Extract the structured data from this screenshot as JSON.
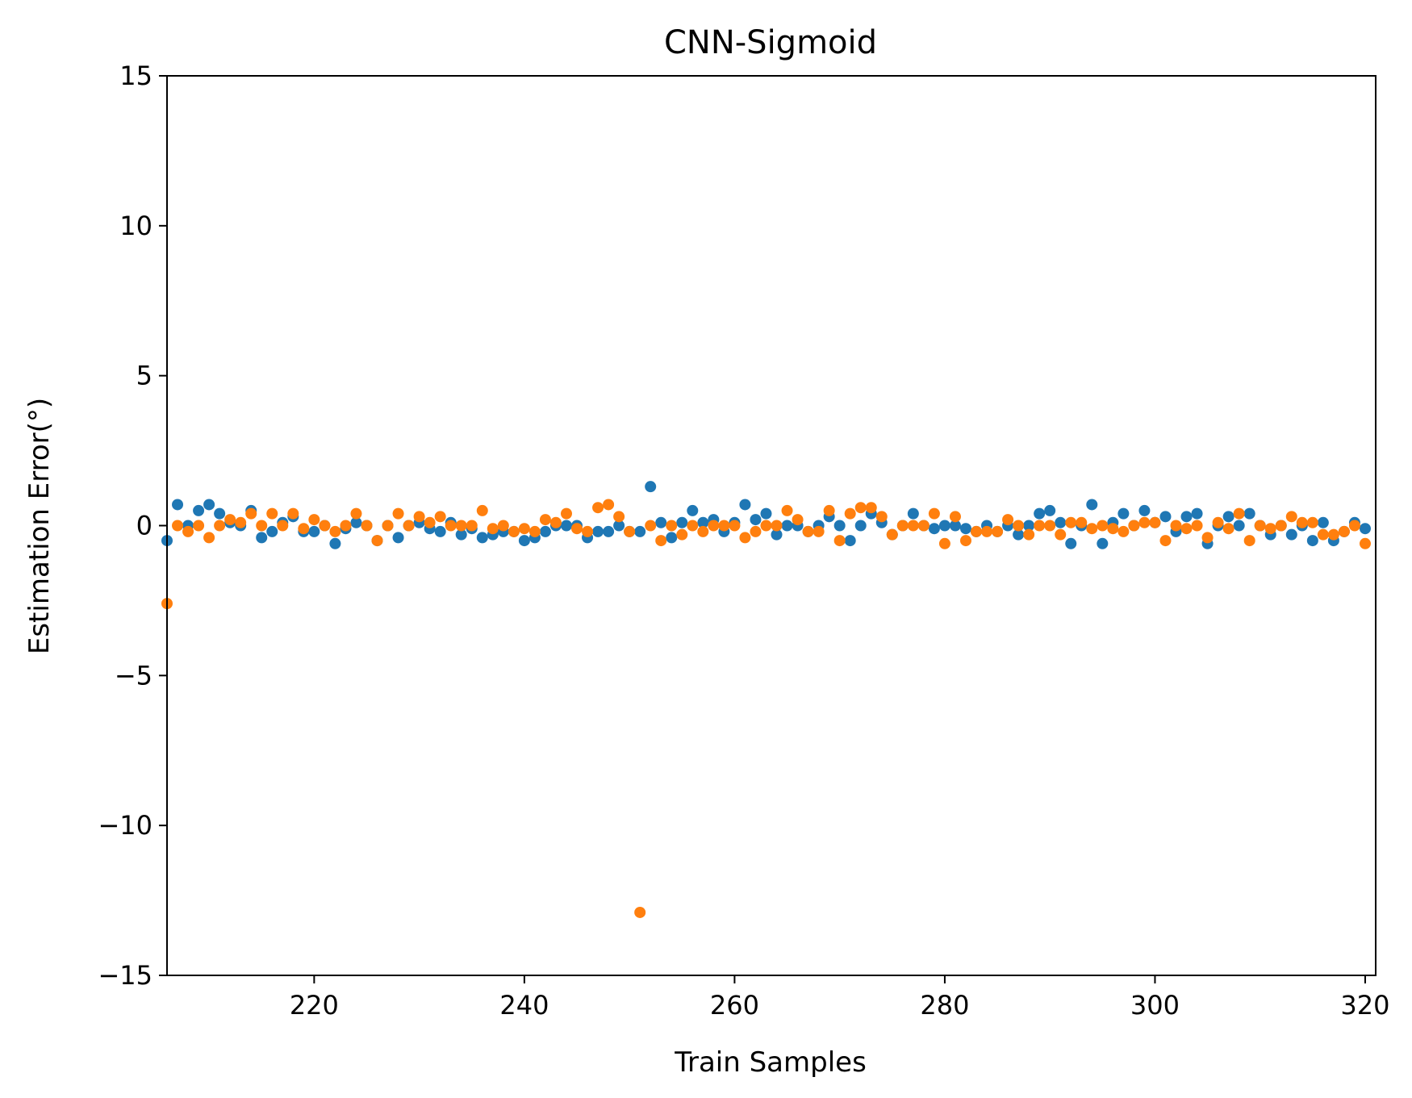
{
  "chart_data": {
    "type": "scatter",
    "title": "CNN-Sigmoid",
    "xlabel": "Train Samples",
    "ylabel": "Estimation Error(°)",
    "xlim": [
      206,
      321
    ],
    "ylim": [
      -15,
      15
    ],
    "xticks": [
      220,
      240,
      260,
      280,
      300,
      320
    ],
    "yticks": [
      15,
      10,
      5,
      0,
      -5,
      -10,
      -15
    ],
    "ytick_labels": [
      "15",
      "10",
      "5",
      "0",
      "−5",
      "−10",
      "−15"
    ],
    "grid": false,
    "legend": "none",
    "x": [
      206,
      207,
      208,
      209,
      210,
      211,
      212,
      213,
      214,
      215,
      216,
      217,
      218,
      219,
      220,
      221,
      222,
      223,
      224,
      225,
      226,
      227,
      228,
      229,
      230,
      231,
      232,
      233,
      234,
      235,
      236,
      237,
      238,
      239,
      240,
      241,
      242,
      243,
      244,
      245,
      246,
      247,
      248,
      249,
      250,
      251,
      252,
      253,
      254,
      255,
      256,
      257,
      258,
      259,
      260,
      261,
      262,
      263,
      264,
      265,
      266,
      267,
      268,
      269,
      270,
      271,
      272,
      273,
      274,
      275,
      276,
      277,
      278,
      279,
      280,
      281,
      282,
      283,
      284,
      285,
      286,
      287,
      288,
      289,
      290,
      291,
      292,
      293,
      294,
      295,
      296,
      297,
      298,
      299,
      300,
      301,
      302,
      303,
      304,
      305,
      306,
      307,
      308,
      309,
      310,
      311,
      312,
      313,
      314,
      315,
      316,
      317,
      318,
      319,
      320
    ],
    "series": [
      {
        "color": "#1f77b4",
        "values": [
          -0.5,
          0.7,
          0.0,
          0.5,
          0.7,
          0.4,
          0.1,
          0.0,
          0.5,
          -0.4,
          -0.2,
          0.1,
          0.3,
          -0.2,
          -0.2,
          0.0,
          -0.6,
          -0.1,
          0.1,
          0.0,
          -0.5,
          0.0,
          -0.4,
          0.0,
          0.1,
          -0.1,
          -0.2,
          0.1,
          -0.3,
          -0.1,
          -0.4,
          -0.3,
          -0.2,
          -0.2,
          -0.5,
          -0.4,
          -0.2,
          0.0,
          0.0,
          0.0,
          -0.4,
          -0.2,
          -0.2,
          0.0,
          -0.2,
          -0.2,
          1.3,
          0.1,
          -0.4,
          0.1,
          0.5,
          0.1,
          0.2,
          -0.2,
          0.1,
          0.7,
          0.2,
          0.4,
          -0.3,
          0.0,
          0.0,
          -0.2,
          0.0,
          0.3,
          0.0,
          -0.5,
          0.0,
          0.4,
          0.1,
          -0.3,
          0.0,
          0.4,
          0.0,
          -0.1,
          0.0,
          0.0,
          -0.1,
          -0.2,
          0.0,
          -0.2,
          0.0,
          -0.3,
          0.0,
          0.4,
          0.5,
          0.1,
          -0.6,
          0.0,
          0.7,
          -0.6,
          0.1,
          0.4,
          0.0,
          0.5,
          0.1,
          0.3,
          -0.2,
          0.3,
          0.4,
          -0.6,
          0.0,
          0.3,
          0.0,
          0.4,
          0.0,
          -0.3,
          0.0,
          -0.3,
          0.0,
          -0.5,
          0.1,
          -0.5,
          -0.2,
          0.1,
          -0.1
        ]
      },
      {
        "color": "#ff7f0e",
        "values": [
          -2.6,
          0.0,
          -0.2,
          0.0,
          -0.4,
          0.0,
          0.2,
          0.1,
          0.4,
          0.0,
          0.4,
          0.0,
          0.4,
          -0.1,
          0.2,
          0.0,
          -0.2,
          0.0,
          0.4,
          0.0,
          -0.5,
          0.0,
          0.4,
          0.0,
          0.3,
          0.1,
          0.3,
          0.0,
          0.0,
          0.0,
          0.5,
          -0.1,
          0.0,
          -0.2,
          -0.1,
          -0.2,
          0.2,
          0.1,
          0.4,
          -0.1,
          -0.2,
          0.6,
          0.7,
          0.3,
          -0.2,
          -12.9,
          0.0,
          -0.5,
          0.0,
          -0.3,
          0.0,
          -0.2,
          0.0,
          0.0,
          0.0,
          -0.4,
          -0.2,
          0.0,
          0.0,
          0.5,
          0.2,
          -0.2,
          -0.2,
          0.5,
          -0.5,
          0.4,
          0.6,
          0.6,
          0.3,
          -0.3,
          0.0,
          0.0,
          0.0,
          0.4,
          -0.6,
          0.3,
          -0.5,
          -0.2,
          -0.2,
          -0.2,
          0.2,
          0.0,
          -0.3,
          0.0,
          0.0,
          -0.3,
          0.1,
          0.1,
          -0.1,
          0.0,
          -0.1,
          -0.2,
          0.0,
          0.1,
          0.1,
          -0.5,
          0.0,
          -0.1,
          0.0,
          -0.4,
          0.1,
          -0.1,
          0.4,
          -0.5,
          0.0,
          -0.1,
          0.0,
          0.3,
          0.1,
          0.1,
          -0.3,
          -0.3,
          -0.2,
          0.0,
          -0.6
        ]
      }
    ]
  }
}
